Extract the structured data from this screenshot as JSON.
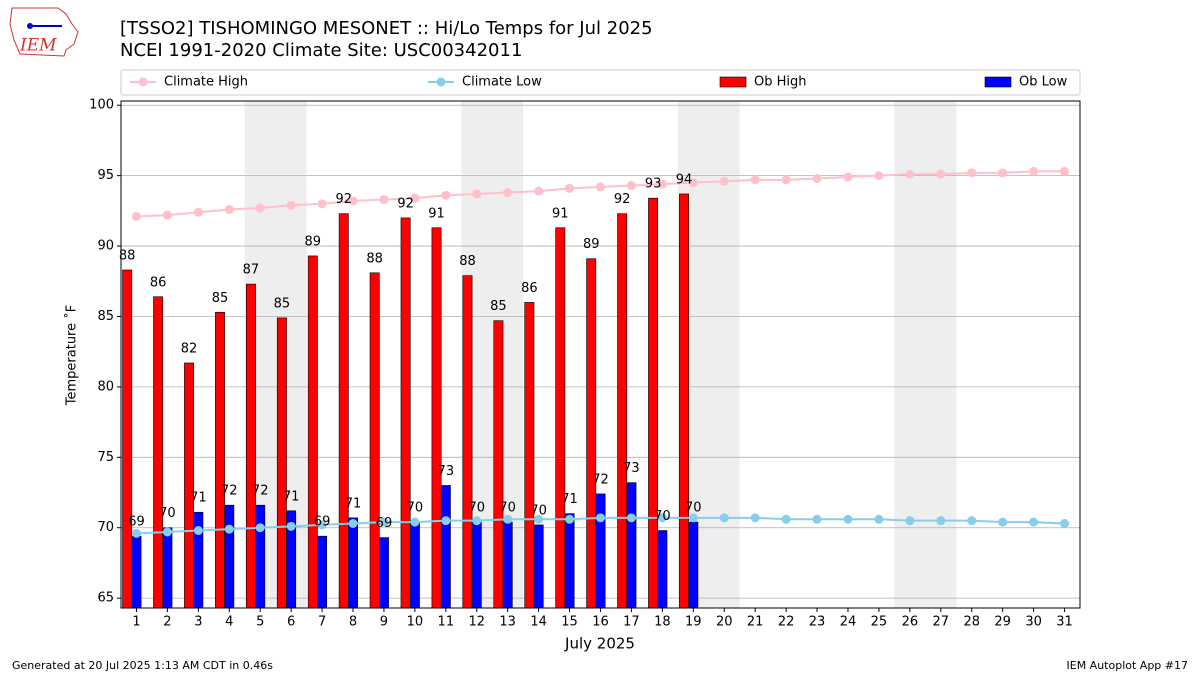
{
  "chart_data": {
    "type": "bar_line",
    "title": "[TSSO2] TISHOMINGO MESONET :: Hi/Lo Temps for Jul 2025",
    "subtitle": "NCEI 1991-2020 Climate Site: USC00342011",
    "logo_text": "IEM",
    "ylabel": "Temperature ˚F",
    "xlabel": "July 2025",
    "footer_left": "Generated at 20 Jul 2025 1:13 AM CDT in 0.46s",
    "footer_right": "IEM Autoplot App #17",
    "x": [
      1,
      2,
      3,
      4,
      5,
      6,
      7,
      8,
      9,
      10,
      11,
      12,
      13,
      14,
      15,
      16,
      17,
      18,
      19,
      20,
      21,
      22,
      23,
      24,
      25,
      26,
      27,
      28,
      29,
      30,
      31
    ],
    "xticks": [
      1,
      2,
      3,
      4,
      5,
      6,
      7,
      8,
      9,
      10,
      11,
      12,
      13,
      14,
      15,
      16,
      17,
      18,
      19,
      20,
      21,
      22,
      23,
      24,
      25,
      26,
      27,
      28,
      29,
      30,
      31
    ],
    "xlim": [
      0.5,
      31.5
    ],
    "ylim": [
      64.3,
      100.3
    ],
    "yticks": [
      65,
      70,
      75,
      80,
      85,
      90,
      95,
      100
    ],
    "grid": true,
    "shaded_ranges": [
      [
        4.5,
        6.5
      ],
      [
        11.5,
        13.5
      ],
      [
        18.5,
        20.5
      ],
      [
        25.5,
        27.5
      ]
    ],
    "series": [
      {
        "name": "Climate High",
        "kind": "line",
        "color": "#ffc0cb",
        "values": [
          92.1,
          92.2,
          92.4,
          92.6,
          92.7,
          92.9,
          93.0,
          93.2,
          93.3,
          93.4,
          93.6,
          93.7,
          93.8,
          93.9,
          94.1,
          94.2,
          94.3,
          94.4,
          94.5,
          94.6,
          94.7,
          94.7,
          94.8,
          94.9,
          95.0,
          95.1,
          95.1,
          95.2,
          95.2,
          95.3,
          95.3
        ]
      },
      {
        "name": "Climate Low",
        "kind": "line",
        "color": "#87ceeb",
        "values": [
          69.6,
          69.7,
          69.8,
          69.9,
          70.0,
          70.1,
          70.2,
          70.3,
          70.4,
          70.4,
          70.5,
          70.5,
          70.6,
          70.6,
          70.6,
          70.7,
          70.7,
          70.7,
          70.7,
          70.7,
          70.7,
          70.6,
          70.6,
          70.6,
          70.6,
          70.5,
          70.5,
          70.5,
          70.4,
          70.4,
          70.3
        ]
      },
      {
        "name": "Ob High",
        "kind": "bar",
        "color": "#ff0000",
        "values": [
          88.3,
          86.4,
          81.7,
          85.3,
          87.3,
          84.9,
          89.3,
          92.3,
          88.1,
          92.0,
          91.3,
          87.9,
          84.7,
          86.0,
          91.3,
          89.1,
          92.3,
          93.4,
          93.7,
          null,
          null,
          null,
          null,
          null,
          null,
          null,
          null,
          null,
          null,
          null,
          null
        ],
        "value_labels": [
          "88",
          "86",
          "82",
          "85",
          "87",
          "85",
          "89",
          "92",
          "88",
          "92",
          "91",
          "88",
          "85",
          "86",
          "91",
          "89",
          "92",
          "93",
          "94",
          null,
          null,
          null,
          null,
          null,
          null,
          null,
          null,
          null,
          null,
          null,
          null
        ]
      },
      {
        "name": "Ob Low",
        "kind": "bar",
        "color": "#0000ff",
        "values": [
          69.4,
          70.0,
          71.1,
          71.6,
          71.6,
          71.2,
          69.4,
          70.7,
          69.3,
          70.4,
          73.0,
          70.4,
          70.4,
          70.2,
          71.0,
          72.4,
          73.2,
          69.8,
          70.4,
          null,
          null,
          null,
          null,
          null,
          null,
          null,
          null,
          null,
          null,
          null,
          null
        ],
        "value_labels": [
          "69",
          "70",
          "71",
          "72",
          "72",
          "71",
          "69",
          "71",
          "69",
          "70",
          "73",
          "70",
          "70",
          "70",
          "71",
          "72",
          "73",
          "70",
          "70",
          null,
          null,
          null,
          null,
          null,
          null,
          null,
          null,
          null,
          null,
          null,
          null
        ]
      }
    ]
  }
}
